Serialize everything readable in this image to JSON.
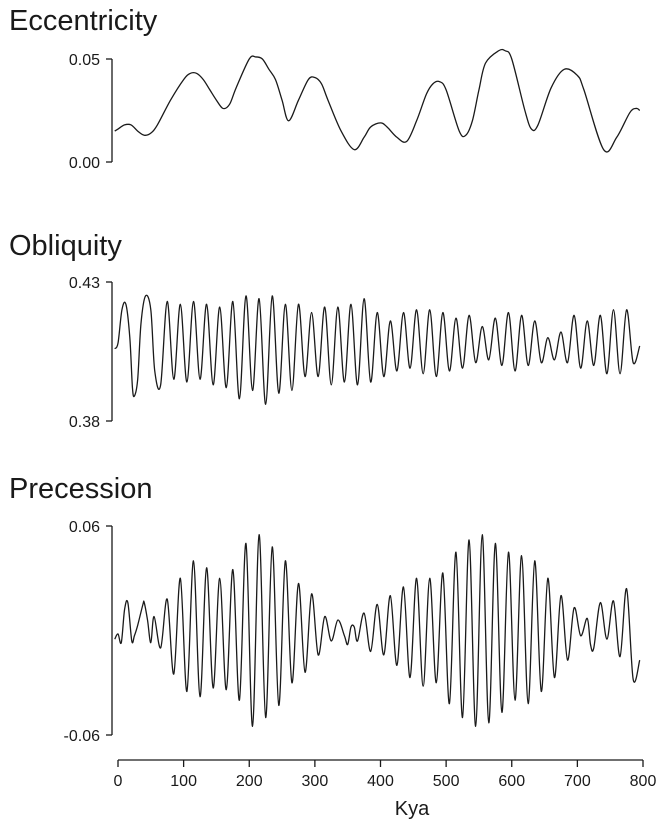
{
  "chart_data": [
    {
      "type": "line",
      "title": "Eccentricity",
      "xlabel": "",
      "ylabel": "",
      "xlim": [
        0,
        800
      ],
      "ylim": [
        0.0,
        0.05
      ],
      "yticks": [
        "0.05",
        "0.00"
      ],
      "grid": false,
      "series": [
        {
          "x": [
            -5,
            0,
            10,
            20,
            30,
            40,
            50,
            60,
            80,
            100,
            110,
            120,
            130,
            140,
            150,
            160,
            170,
            180,
            200,
            210,
            220,
            230,
            240,
            250,
            260,
            275,
            290,
            300,
            310,
            320,
            340,
            360,
            375,
            385,
            400,
            410,
            425,
            440,
            455,
            470,
            480,
            490,
            500,
            520,
            530,
            540,
            550,
            560,
            580,
            590,
            600,
            620,
            630,
            640,
            660,
            680,
            700,
            710,
            740,
            760,
            780,
            790,
            795
          ],
          "values": [
            0.015,
            0.016,
            0.018,
            0.018,
            0.015,
            0.013,
            0.014,
            0.018,
            0.03,
            0.04,
            0.043,
            0.043,
            0.04,
            0.035,
            0.03,
            0.026,
            0.028,
            0.036,
            0.05,
            0.051,
            0.05,
            0.045,
            0.04,
            0.03,
            0.02,
            0.03,
            0.04,
            0.041,
            0.038,
            0.03,
            0.015,
            0.006,
            0.012,
            0.017,
            0.019,
            0.017,
            0.012,
            0.01,
            0.02,
            0.033,
            0.038,
            0.039,
            0.035,
            0.015,
            0.013,
            0.02,
            0.035,
            0.048,
            0.054,
            0.054,
            0.05,
            0.025,
            0.016,
            0.018,
            0.036,
            0.045,
            0.042,
            0.035,
            0.006,
            0.012,
            0.024,
            0.026,
            0.025
          ]
        }
      ]
    },
    {
      "type": "line",
      "title": "Obliquity",
      "xlabel": "",
      "ylabel": "",
      "xlim": [
        0,
        800
      ],
      "ylim": [
        0.38,
        0.43
      ],
      "yticks": [
        "0.43",
        "0.38"
      ],
      "grid": false,
      "series": [
        {
          "x": [
            -5,
            0,
            6,
            12,
            18,
            22,
            25,
            30,
            35,
            42,
            50,
            56,
            65,
            75,
            85,
            95,
            105,
            115,
            125,
            135,
            145,
            155,
            165,
            175,
            185,
            195,
            205,
            215,
            225,
            235,
            245,
            255,
            265,
            275,
            285,
            295,
            305,
            315,
            325,
            335,
            345,
            355,
            365,
            375,
            385,
            395,
            405,
            415,
            425,
            435,
            445,
            455,
            465,
            475,
            485,
            495,
            505,
            515,
            525,
            535,
            545,
            555,
            565,
            575,
            585,
            595,
            605,
            615,
            625,
            635,
            645,
            655,
            665,
            675,
            685,
            695,
            705,
            715,
            725,
            735,
            745,
            755,
            765,
            775,
            785,
            795
          ],
          "values": [
            0.406,
            0.408,
            0.42,
            0.422,
            0.41,
            0.392,
            0.389,
            0.395,
            0.415,
            0.425,
            0.42,
            0.398,
            0.393,
            0.423,
            0.395,
            0.422,
            0.394,
            0.423,
            0.395,
            0.422,
            0.393,
            0.421,
            0.392,
            0.423,
            0.388,
            0.425,
            0.391,
            0.424,
            0.386,
            0.425,
            0.39,
            0.422,
            0.391,
            0.422,
            0.396,
            0.419,
            0.396,
            0.421,
            0.393,
            0.421,
            0.394,
            0.422,
            0.393,
            0.424,
            0.394,
            0.419,
            0.396,
            0.416,
            0.398,
            0.419,
            0.399,
            0.42,
            0.397,
            0.42,
            0.396,
            0.419,
            0.398,
            0.417,
            0.399,
            0.418,
            0.401,
            0.414,
            0.402,
            0.417,
            0.4,
            0.419,
            0.398,
            0.418,
            0.4,
            0.416,
            0.401,
            0.41,
            0.402,
            0.412,
            0.401,
            0.418,
            0.399,
            0.416,
            0.4,
            0.418,
            0.397,
            0.42,
            0.397,
            0.42,
            0.401,
            0.407
          ]
        }
      ]
    },
    {
      "type": "line",
      "title": "Precession",
      "xlabel": "Kya",
      "ylabel": "",
      "xlim": [
        0,
        800
      ],
      "ylim": [
        -0.06,
        0.06
      ],
      "xticks": [
        "0",
        "100",
        "200",
        "300",
        "400",
        "500",
        "600",
        "700",
        "800"
      ],
      "yticks": [
        "0.06",
        "-0.06"
      ],
      "grid": false,
      "series": [
        {
          "x": [
            -5,
            0,
            5,
            10,
            15,
            21,
            25,
            30,
            38,
            40,
            45,
            50,
            55,
            65,
            75,
            85,
            95,
            105,
            115,
            125,
            135,
            145,
            155,
            165,
            175,
            185,
            195,
            205,
            215,
            225,
            235,
            245,
            255,
            265,
            275,
            285,
            295,
            305,
            315,
            325,
            335,
            345,
            350,
            355,
            360,
            365,
            375,
            385,
            395,
            405,
            415,
            425,
            435,
            445,
            455,
            465,
            475,
            485,
            495,
            505,
            515,
            525,
            535,
            545,
            555,
            565,
            575,
            585,
            595,
            605,
            615,
            625,
            635,
            645,
            655,
            665,
            675,
            685,
            695,
            705,
            715,
            720,
            725,
            735,
            745,
            755,
            765,
            775,
            785,
            795
          ],
          "values": [
            -0.005,
            -0.002,
            -0.007,
            0.012,
            0.016,
            -0.006,
            -0.003,
            0.003,
            0.015,
            0.016,
            0.006,
            -0.007,
            0.008,
            -0.01,
            0.018,
            -0.025,
            0.03,
            -0.035,
            0.04,
            -0.038,
            0.036,
            -0.033,
            0.03,
            -0.034,
            0.035,
            -0.04,
            0.05,
            -0.055,
            0.055,
            -0.05,
            0.048,
            -0.043,
            0.04,
            -0.03,
            0.027,
            -0.024,
            0.021,
            -0.014,
            0.008,
            -0.006,
            0.006,
            -0.003,
            -0.008,
            0.002,
            0.002,
            -0.006,
            0.01,
            -0.012,
            0.015,
            -0.014,
            0.02,
            -0.02,
            0.025,
            -0.027,
            0.03,
            -0.032,
            0.03,
            -0.03,
            0.033,
            -0.042,
            0.045,
            -0.05,
            0.052,
            -0.055,
            0.055,
            -0.053,
            0.05,
            -0.047,
            0.045,
            -0.04,
            0.043,
            -0.042,
            0.04,
            -0.035,
            0.03,
            -0.027,
            0.02,
            -0.017,
            0.013,
            -0.003,
            0.007,
            -0.008,
            -0.01,
            0.016,
            -0.005,
            0.017,
            -0.015,
            0.024,
            -0.028,
            -0.017
          ]
        }
      ]
    }
  ]
}
